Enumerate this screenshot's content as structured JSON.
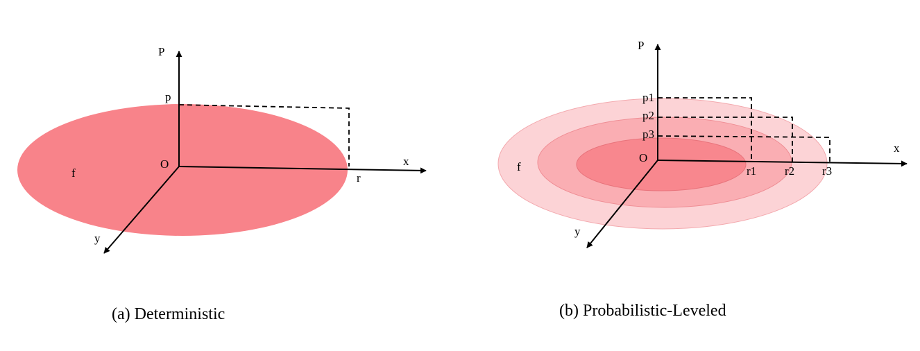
{
  "panel_a": {
    "caption": "(a) Deterministic",
    "labels": {
      "p_axis": "P",
      "p": "p",
      "origin": "O",
      "x": "x",
      "y": "y",
      "r": "r",
      "f": "f"
    },
    "fill": "#f8838a"
  },
  "panel_b": {
    "caption": "(b) Probabilistic-Leveled",
    "labels": {
      "p_axis": "P",
      "origin": "O",
      "x": "x",
      "y": "y",
      "f": "f",
      "p1": "p1",
      "p2": "p2",
      "p3": "p3",
      "r1": "r1",
      "r2": "r2",
      "r3": "r3"
    },
    "fills": {
      "outer": "#fcd3d6",
      "middle": "#faaeb3",
      "inner": "#f8878e"
    }
  }
}
